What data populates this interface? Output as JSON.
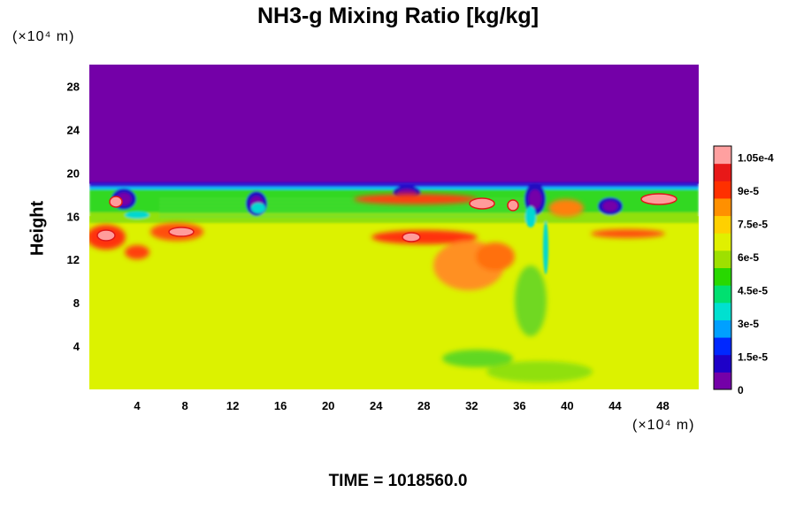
{
  "chart_data": {
    "type": "heatmap",
    "title": "NH3-g Mixing Ratio [kg/kg]",
    "ylabel": "Height",
    "x_unit": "(×10⁴ m)",
    "y_unit": "(×10⁴ m)",
    "x_ticks": [
      4,
      8,
      12,
      16,
      20,
      24,
      28,
      32,
      36,
      40,
      44,
      48
    ],
    "y_ticks": [
      4,
      8,
      12,
      16,
      20,
      24,
      28
    ],
    "xlim": [
      0,
      51
    ],
    "ylim": [
      0,
      30
    ],
    "colorbar": {
      "labels": [
        "0",
        "1.5e-5",
        "3e-5",
        "4.5e-5",
        "6e-5",
        "7.5e-5",
        "9e-5",
        "1.05e-4"
      ],
      "values": [
        0,
        1.5e-05,
        3e-05,
        4.5e-05,
        6e-05,
        7.5e-05,
        9e-05,
        0.000105
      ],
      "max": 0.00011,
      "colors": [
        "#7400a8",
        "#1e00c8",
        "#0028ff",
        "#00a0ff",
        "#00e0d0",
        "#00e070",
        "#28d800",
        "#9ee000",
        "#e0f000",
        "#ffd000",
        "#ff9000",
        "#ff3000",
        "#e81818",
        "#ffa0a0"
      ]
    },
    "regions": {
      "upper_layer": {
        "y_from": 19,
        "y_to": 30,
        "value": 0
      },
      "lower_layer": {
        "y_from": 0,
        "y_to": 16,
        "value": 7.5e-05
      },
      "tropopause_band": {
        "y_from": 15.5,
        "y_to": 19,
        "value_range": [
          0,
          0.00011
        ]
      }
    },
    "footer": "TIME = 1018560.0"
  }
}
